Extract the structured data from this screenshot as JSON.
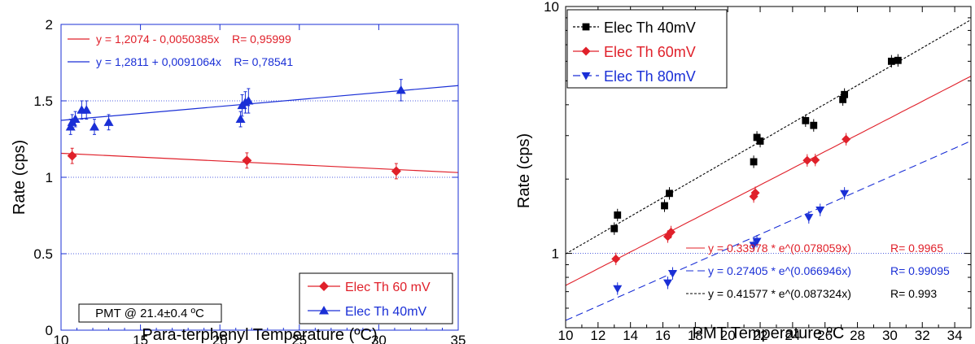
{
  "chart_data": [
    {
      "type": "scatter",
      "xlabel": "Para-terphenyl Temperature (ºC)",
      "ylabel": "Rate (cps)",
      "xlim": [
        10,
        35
      ],
      "ylim": [
        0,
        2
      ],
      "x_ticks": [
        "10",
        "15",
        "20",
        "25",
        "30",
        "35"
      ],
      "y_ticks": [
        "0",
        "0.5",
        "1",
        "1.5",
        "2"
      ],
      "grid": "dotted horizontal lines at 0.5, 1, 1.5",
      "fit_labels": [
        {
          "text": "y = 1,2074 - 0,0050385x    R= 0,95999",
          "color": "#e0202a"
        },
        {
          "text": "y = 1,2811 + 0,0091064x    R= 0,78541",
          "color": "#1a2fd6"
        }
      ],
      "annotation": "PMT @ 21.4±0.4 ºC",
      "legend_position": "bottom-right",
      "series": [
        {
          "name": "Elec Th 60 mV",
          "color": "#e0202a",
          "marker": "diamond",
          "points": [
            [
              10.7,
              1.14
            ],
            [
              21.7,
              1.11
            ],
            [
              31.1,
              1.04
            ]
          ],
          "err": [
            0.05,
            0.05,
            0.05
          ],
          "fit": {
            "intercept": 1.2074,
            "slope": -0.0050385
          }
        },
        {
          "name": "Elec Th 40mV",
          "color": "#1a2fd6",
          "marker": "triangle",
          "points": [
            [
              10.6,
              1.33
            ],
            [
              10.7,
              1.36
            ],
            [
              10.9,
              1.38
            ],
            [
              11.3,
              1.44
            ],
            [
              11.6,
              1.44
            ],
            [
              12.1,
              1.33
            ],
            [
              13.0,
              1.36
            ],
            [
              21.3,
              1.38
            ],
            [
              21.4,
              1.47
            ],
            [
              21.6,
              1.49
            ],
            [
              21.8,
              1.5
            ],
            [
              31.4,
              1.57
            ]
          ],
          "err": [
            0.05,
            0.05,
            0.05,
            0.06,
            0.06,
            0.05,
            0.05,
            0.05,
            0.07,
            0.07,
            0.08,
            0.07
          ],
          "fit": {
            "intercept": 1.2811,
            "slope": 0.0091064
          }
        }
      ]
    },
    {
      "type": "scatter",
      "xlabel": "PMT Temperature ºC",
      "ylabel": "Rate (cps)",
      "xlim": [
        10,
        35
      ],
      "ylim": [
        0.5,
        10
      ],
      "y_scale": "log",
      "x_ticks": [
        "10",
        "12",
        "14",
        "16",
        "18",
        "20",
        "22",
        "24",
        "26",
        "28",
        "30",
        "32",
        "34"
      ],
      "y_ticks": [
        "1",
        "10"
      ],
      "grid": "dotted horizontal line at 1",
      "fit_labels": [
        {
          "text": "y = 0.33978 * e^(0.078059x)",
          "r": "R= 0.9965",
          "color": "#e0202a"
        },
        {
          "text": "y = 0.27405 * e^(0.066946x)",
          "r": "R= 0.99095",
          "color": "#1a2fd6"
        },
        {
          "text": "y = 0.41577 * e^(0.087324x)",
          "r": "R= 0.993",
          "color": "#000000"
        }
      ],
      "legend_position": "top-left",
      "series": [
        {
          "name": "Elec Th 40mV",
          "color": "#000000",
          "marker": "square",
          "points": [
            [
              13.0,
              1.26
            ],
            [
              13.2,
              1.43
            ],
            [
              16.1,
              1.56
            ],
            [
              16.4,
              1.75
            ],
            [
              21.6,
              2.35
            ],
            [
              21.8,
              2.95
            ],
            [
              22.0,
              2.85
            ],
            [
              24.8,
              3.45
            ],
            [
              25.3,
              3.3
            ],
            [
              27.1,
              4.2
            ],
            [
              27.2,
              4.4
            ],
            [
              30.1,
              6.0
            ],
            [
              30.5,
              6.05
            ]
          ],
          "fit": {
            "a": 0.41577,
            "b": 0.087324,
            "dash": "short"
          }
        },
        {
          "name": "Elec Th 60mV",
          "color": "#e0202a",
          "marker": "diamond",
          "points": [
            [
              13.1,
              0.95
            ],
            [
              16.3,
              1.17
            ],
            [
              16.5,
              1.22
            ],
            [
              21.6,
              1.7
            ],
            [
              21.7,
              1.76
            ],
            [
              24.9,
              2.38
            ],
            [
              25.4,
              2.39
            ],
            [
              27.3,
              2.9
            ]
          ],
          "fit": {
            "a": 0.33978,
            "b": 0.078059,
            "dash": "solid"
          }
        },
        {
          "name": "Elec Th 80mV",
          "color": "#1a2fd6",
          "marker": "triangle-down",
          "points": [
            [
              13.2,
              0.72
            ],
            [
              16.3,
              0.76
            ],
            [
              16.6,
              0.83
            ],
            [
              21.6,
              1.08
            ],
            [
              21.8,
              1.12
            ],
            [
              25.0,
              1.4
            ],
            [
              25.7,
              1.5
            ],
            [
              27.2,
              1.75
            ]
          ],
          "fit": {
            "a": 0.27405,
            "b": 0.066946,
            "dash": "long"
          }
        }
      ]
    }
  ]
}
